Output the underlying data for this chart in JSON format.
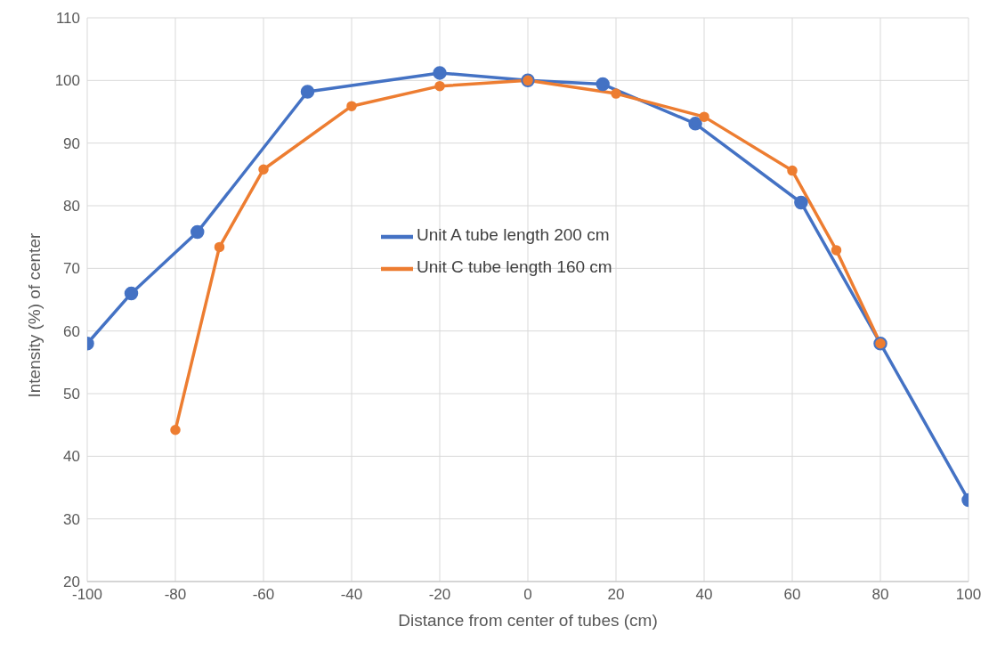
{
  "chart_data": {
    "type": "line",
    "xlabel": "Distance from center of tubes (cm)",
    "ylabel": "Intensity (%) of center",
    "series": [
      {
        "name": "Unit A tube length 200 cm",
        "color": "#4472c4",
        "x": [
          -100,
          -90,
          -75,
          -50,
          -20,
          0,
          17,
          38,
          62,
          80,
          100
        ],
        "values": [
          58,
          66,
          75.8,
          98.2,
          101.2,
          100,
          99.4,
          93.1,
          80.5,
          58,
          33
        ]
      },
      {
        "name": "Unit C tube length 160 cm",
        "color": "#ed7d31",
        "x": [
          -80,
          -70,
          -60,
          -40,
          -20,
          0,
          20,
          40,
          60,
          70,
          80
        ],
        "values": [
          44.2,
          73.4,
          85.8,
          95.9,
          99.1,
          100,
          97.9,
          94.2,
          85.6,
          72.9,
          58
        ]
      }
    ],
    "xlim": [
      -100,
      100
    ],
    "xticks": [
      -100,
      -80,
      -60,
      -40,
      -20,
      0,
      20,
      40,
      60,
      80,
      100
    ],
    "ylim": [
      20,
      110
    ],
    "yticks": [
      20,
      30,
      40,
      50,
      60,
      70,
      80,
      90,
      100,
      110
    ],
    "grid": true,
    "legend": "center",
    "marker": "circle",
    "line_style": "solid"
  }
}
